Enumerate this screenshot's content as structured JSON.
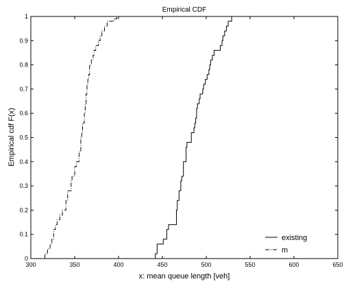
{
  "chart_data": {
    "type": "line",
    "title": "Empirical CDF",
    "xlabel": "x: mean queue length [veh]",
    "ylabel": "Empirical cdf F(x)",
    "xlim": [
      300,
      650
    ],
    "ylim": [
      0,
      1
    ],
    "xticks": [
      300,
      350,
      400,
      450,
      500,
      550,
      600,
      650
    ],
    "xtick_labels": [
      "300",
      "350",
      "400",
      "450",
      "500",
      "550",
      "600",
      "650"
    ],
    "yticks": [
      0,
      0.1,
      0.2,
      0.3,
      0.4,
      0.5,
      0.6,
      0.7,
      0.8,
      0.9,
      1
    ],
    "ytick_labels": [
      "0",
      "0.1",
      "0.2",
      "0.3",
      "0.4",
      "0.5",
      "0.6",
      "0.7",
      "0.8",
      "0.9",
      "1"
    ],
    "grid": false,
    "legend_position": "bottom-right",
    "step": true,
    "series": [
      {
        "name": "existing",
        "style": "solid",
        "color": "#000000",
        "x": [
          442,
          442,
          444,
          451,
          455,
          457,
          466,
          467,
          469,
          471,
          472,
          474,
          477,
          478,
          483,
          486,
          487,
          488,
          489,
          490,
          492,
          493,
          496,
          497,
          499,
          501,
          503,
          504,
          505,
          507,
          509,
          516,
          518,
          519,
          521,
          523,
          525,
          529,
          531,
          533,
          540,
          546,
          592,
          612
        ],
        "y": [
          0,
          0.02,
          0.06,
          0.08,
          0.12,
          0.14,
          0.2,
          0.24,
          0.28,
          0.32,
          0.34,
          0.4,
          0.46,
          0.48,
          0.52,
          0.54,
          0.56,
          0.58,
          0.62,
          0.64,
          0.66,
          0.68,
          0.7,
          0.72,
          0.74,
          0.76,
          0.78,
          0.8,
          0.82,
          0.84,
          0.86,
          0.88,
          0.9,
          0.92,
          0.94,
          0.96,
          0.98,
          1.0,
          1.0,
          1.0,
          1.0,
          1.0,
          1.0,
          1.0
        ]
      },
      {
        "name": "m",
        "style": "dashdot",
        "color": "#000000",
        "x": [
          316,
          316,
          319,
          322,
          324,
          326,
          328,
          330,
          333,
          336,
          340,
          342,
          346,
          347,
          350,
          352,
          355,
          357,
          358,
          359,
          361,
          362,
          363,
          364,
          365,
          366,
          367,
          369,
          371,
          372,
          374,
          377,
          379,
          381,
          384,
          387,
          392,
          395,
          398
        ],
        "y": [
          0,
          0.02,
          0.04,
          0.06,
          0.08,
          0.12,
          0.14,
          0.16,
          0.18,
          0.2,
          0.24,
          0.28,
          0.32,
          0.34,
          0.38,
          0.4,
          0.44,
          0.5,
          0.52,
          0.56,
          0.6,
          0.64,
          0.68,
          0.72,
          0.74,
          0.76,
          0.8,
          0.82,
          0.84,
          0.86,
          0.88,
          0.9,
          0.92,
          0.94,
          0.96,
          0.98,
          0.98,
          0.99,
          1.0
        ]
      }
    ]
  }
}
